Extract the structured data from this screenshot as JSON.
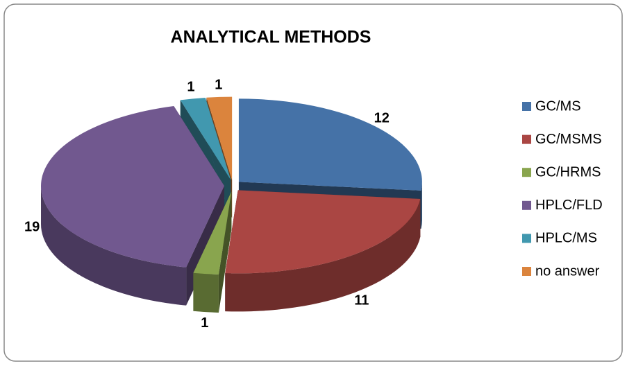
{
  "chart_data": {
    "type": "pie",
    "title": "ANALYTICAL METHODS",
    "categories": [
      "GC/MS",
      "GC/MSMS",
      "GC/HRMS",
      "HPLC/FLD",
      "HPLC/MS",
      "no answer"
    ],
    "values": [
      12,
      11,
      1,
      19,
      1,
      1
    ],
    "colors": [
      "#4572a7",
      "#aa4643",
      "#89a54e",
      "#71588f",
      "#4198af",
      "#db843d"
    ],
    "legend": "right",
    "exploded": true,
    "three_d": true
  }
}
